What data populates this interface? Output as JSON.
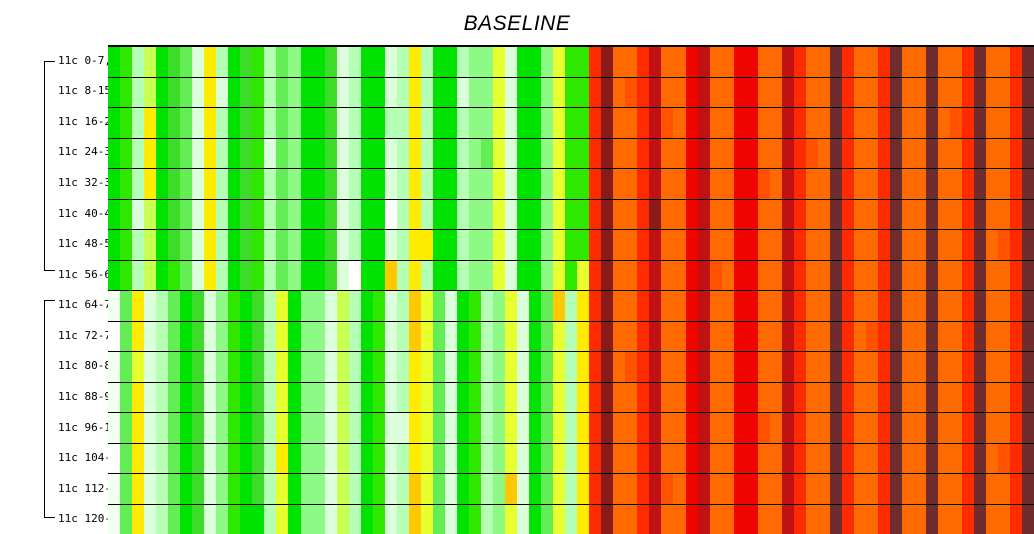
{
  "title": "BASELINE",
  "colors": {
    "background": "#FFFFFF",
    "grid_line": "#000000",
    "text": "#000000"
  },
  "chart_data": {
    "type": "heatmap",
    "title": "BASELINE",
    "row_labels": [
      "11c 0-7,",
      "11c 8-15",
      "11c 16-2",
      "11c 24-3",
      "11c 32-3",
      "11c 40-4",
      "11c 48-5",
      "11c 56-6",
      "11c 64-7",
      "11c 72-7",
      "11c 80-8",
      "11c 88-9",
      "11c 96-1",
      "11c 104-",
      "11c 112-",
      "11c 120-"
    ],
    "row_groups": [
      {
        "name": "group-1",
        "first_label": "11c 0-7,",
        "last_label": "11c 56-6",
        "rows": 8
      },
      {
        "name": "group-2",
        "first_label": "11c 64-7",
        "last_label": "11c 120-",
        "rows": 8
      }
    ],
    "n_rows": 16,
    "n_cols": 77,
    "col_regions": {
      "green_cols": 40,
      "orange_cols": 37
    },
    "layout": {
      "grid_lines": "horizontal-black",
      "legend": "none",
      "x_axis": "none"
    },
    "palette": {
      "G": "#00E300",
      "g": "#2FE800",
      "h": "#3CDC28",
      "l": "#63EE55",
      "m": "#8CFA84",
      "p": "#B4FFB4",
      "w": "#DAFFDA",
      "W": "#F0FFF0",
      "x": "#FFFFFF",
      "Y": "#FFEB00",
      "y": "#E8FF2E",
      "c": "#C8FF50",
      "O": "#FFC800",
      "o": "#FF6A00",
      "n": "#FF5200",
      "R": "#FF2B00",
      "r": "#F00400",
      "M": "#C01212",
      "D": "#8C1A1A",
      "B": "#702C2C"
    },
    "grid": [
      "GgpcGhlwYpGhgplmGGhwpGGwpYpGGpmmywGGmyggRDooRMoorMoorrooMRooBRooRBooBooRBooRB",
      "GgpcGhlwYwGhgplmGGhwpGGwpYpGGwmmywGGmyggRDonRMoorMoorrooMRooBRooRBooBooRBooRB",
      "GgpYGhlwYpGhgplmGGhwpGGppYpGGpmmywGGmyggRDooRMnorMoorrooMRooBRooRBooBonRBooRB",
      "GgpYGhlwYpGhgwlmGGhwpGGwpYpGGpmlywGGmyggRDooRMoorMoorrooMRnoBRooRBooBooRBooRB",
      "GgpYGhlwYpGhgplmGGhwpGGwpYpGGpmmywGGmyggRDooRMoorMoorrnoMRooBRooRBooBooRBooRB",
      "GgwcGhlwYpGhgplmGGhwpGGxpYpGGpmmywGGmyggRDooRDoorMoorrooMRooBRooRBooBooRBooRB",
      "GgpcGhlwYpGhgplmGGhwpGGwpYYGGpmmywGGmyggRDooRMoorMoorrooMRooBRooRBooBooRBonRB",
      "GgpcGglwYpGhgplmGGhwxGGOpYpGGpmmywGGmygyRDooRMoorMnorrooMRooBRooRBooBooRBooRB",
      "WlYwplGhwmgGhpyGmmwcpGgwpOylwGgpmywGlOpYRDooRMoorMoorrooMRooBRooRBooBooRBooRB",
      "xlYwplGhwmgGhpyGmmwcpGgwpOylwGgpmywGlypYRDooRMoorMoorrooMRooBRonRBooBooRBooRB",
      "WlywplGhwmgGhpyGmmwcpGgwpYylwGgpmywGlypYRDonRMoorMoorrooMRooBRooRBooBooRBooRB",
      "WlYwplGhwmgGhpyGmmwcpGgwpYylwGgpmywGlypYRDooRMoorMoorrooMRooBRooRBooBooRBooRB",
      "WlYwplGhwmgGhpyGmmwcpGgwwYylwGgpmywGlypYRDooRMoorMoorrnoMRooBRooRBooBooRBooRB",
      "xlYwplGhwmgGhpYGmmwcpGgwpYylwGgpmywGlypYRDooRMoorMoorrooMRooBRooRBooBooRBonRB",
      "WlYwplGhwmgGhpyGmmwcpGgwpOylwGgpmOwGlypYRDooRMnorMoorrooMRooBRooRBooBooRBooRB",
      "WlYwplGhwmgGGpyGmmwcpGgwpOylwGgpmywGlypYRDooRMoorMoorrooMRooBRooRBooBooRBooRB"
    ]
  }
}
